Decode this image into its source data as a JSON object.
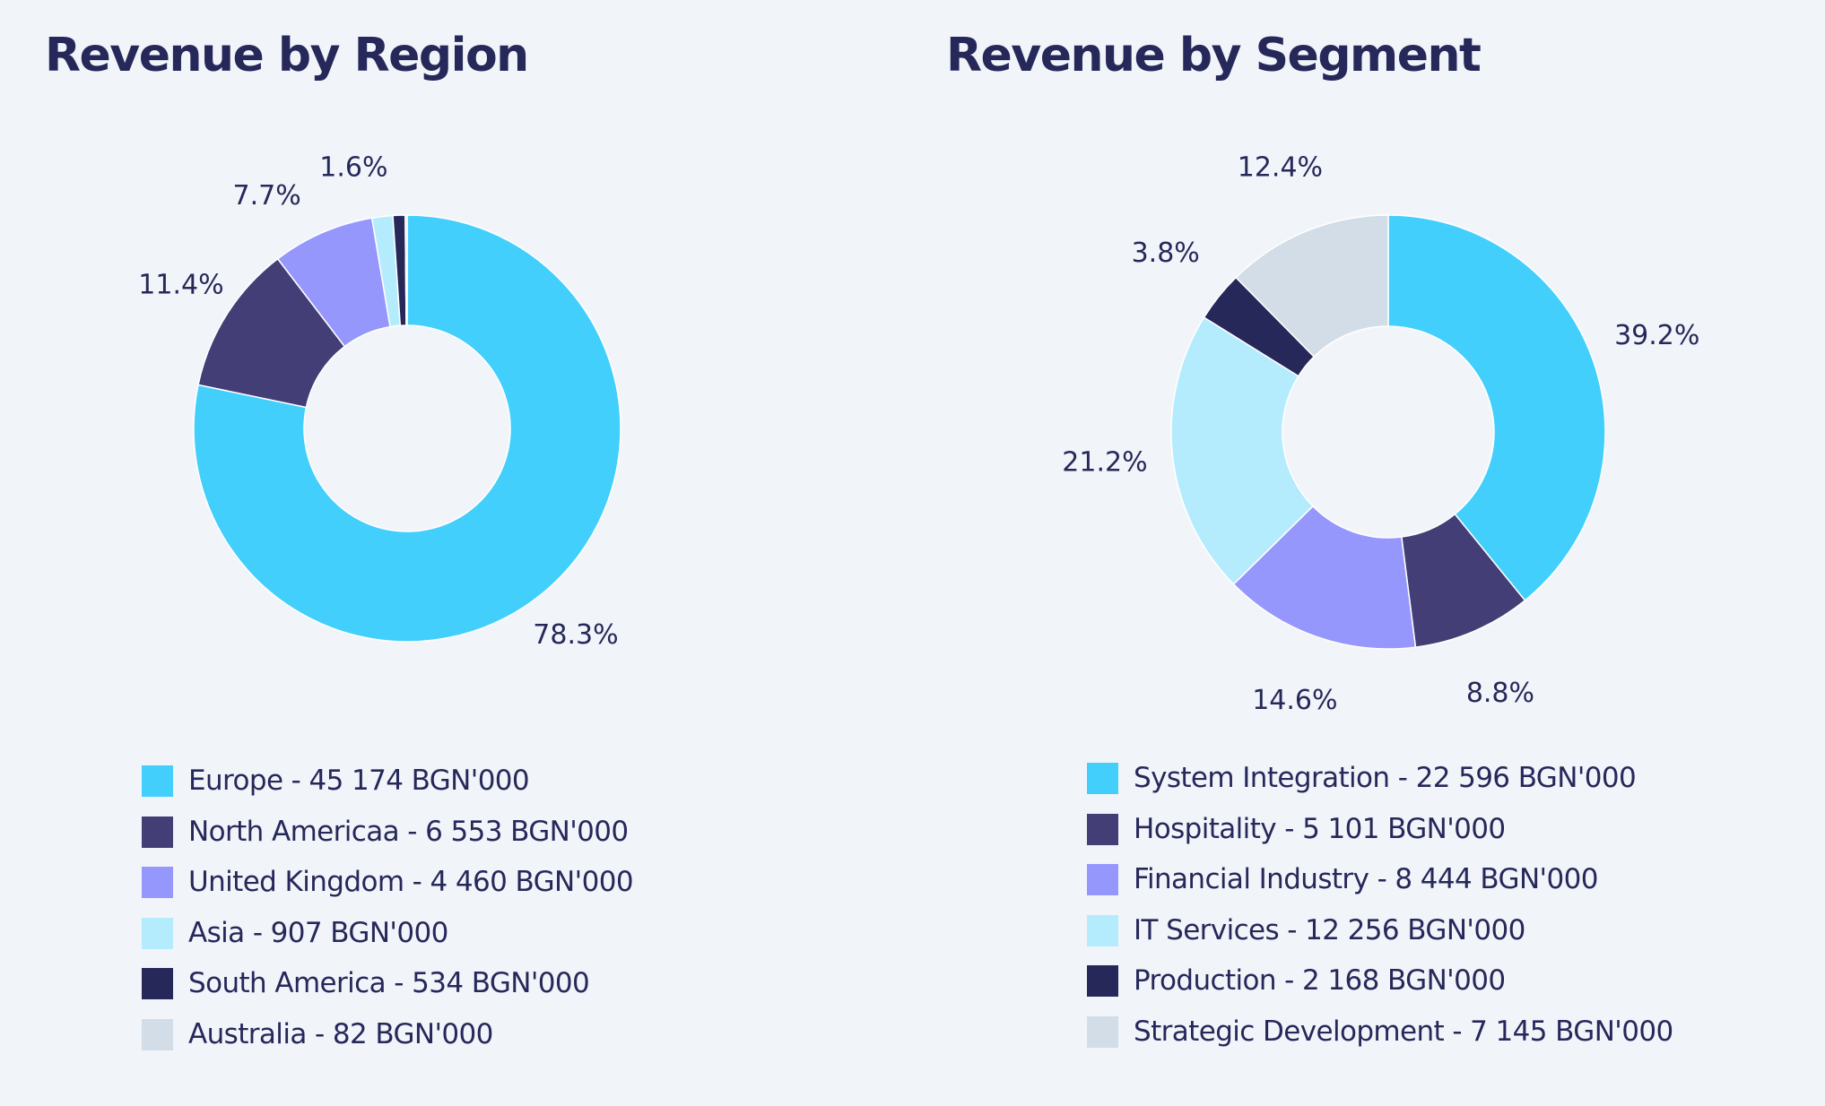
{
  "chart_data": [
    {
      "type": "pie",
      "style": "donut",
      "title": "Revenue by Region",
      "unit": "BGN'000",
      "series": [
        {
          "name": "Europe",
          "value": 45174,
          "percent_label": "78.3%",
          "legend_label": "Europe - 45 174 BGN'000",
          "color": "#42cffc"
        },
        {
          "name": "North Americaa",
          "value": 6553,
          "percent_label": "11.4%",
          "legend_label": "North Americaa - 6 553 BGN'000",
          "color": "#433f76"
        },
        {
          "name": "United Kingdom",
          "value": 4460,
          "percent_label": "7.7%",
          "legend_label": "United Kingdom - 4 460 BGN'000",
          "color": "#9697fc"
        },
        {
          "name": "Asia",
          "value": 907,
          "percent_label": "1.6%",
          "legend_label": "Asia - 907 BGN'000",
          "color": "#b4ecfd"
        },
        {
          "name": "South America",
          "value": 534,
          "percent_label": "",
          "legend_label": "South America - 534 BGN'000",
          "color": "#27285a"
        },
        {
          "name": "Australia",
          "value": 82,
          "percent_label": "",
          "legend_label": "Australia - 82 BGN'000",
          "color": "#d2dde8"
        }
      ],
      "legend_position": "bottom"
    },
    {
      "type": "pie",
      "style": "donut",
      "title": "Revenue by Segment",
      "unit": "BGN'000",
      "series": [
        {
          "name": "System Integration",
          "value": 22596,
          "percent_label": "39.2%",
          "legend_label": "System Integration - 22 596 BGN'000",
          "color": "#42cffc"
        },
        {
          "name": "Hospitality",
          "value": 5101,
          "percent_label": "8.8%",
          "legend_label": "Hospitality - 5 101 BGN'000",
          "color": "#433f76"
        },
        {
          "name": "Financial Industry",
          "value": 8444,
          "percent_label": "14.6%",
          "legend_label": "Financial Industry - 8 444 BGN'000",
          "color": "#9697fc"
        },
        {
          "name": "IT Services",
          "value": 12256,
          "percent_label": "21.2%",
          "legend_label": "IT Services - 12 256 BGN'000",
          "color": "#b4ecfd"
        },
        {
          "name": "Production",
          "value": 2168,
          "percent_label": "3.8%",
          "legend_label": "Production - 2 168 BGN'000",
          "color": "#27285a"
        },
        {
          "name": "Strategic Development",
          "value": 7145,
          "percent_label": "12.4%",
          "legend_label": "Strategic Development - 7 145 BGN'000",
          "color": "#d2dde8"
        }
      ],
      "legend_position": "bottom"
    }
  ]
}
